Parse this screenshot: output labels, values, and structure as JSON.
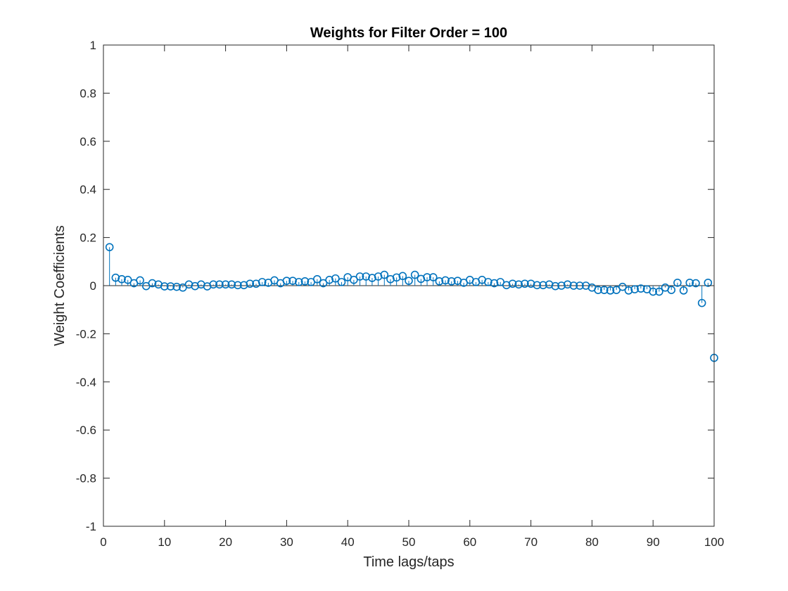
{
  "chart_data": {
    "type": "stem",
    "title": "Weights for Filter Order = 100",
    "xlabel": "Time lags/taps",
    "ylabel": "Weight Coefficients",
    "xlim": [
      0,
      100
    ],
    "ylim": [
      -1,
      1
    ],
    "xticks": [
      0,
      10,
      20,
      30,
      40,
      50,
      60,
      70,
      80,
      90,
      100
    ],
    "yticks": [
      -1,
      -0.8,
      -0.6,
      -0.4,
      -0.2,
      0,
      0.2,
      0.4,
      0.6,
      0.8,
      1
    ],
    "xtick_labels": [
      "0",
      "10",
      "20",
      "30",
      "40",
      "50",
      "60",
      "70",
      "80",
      "90",
      "100"
    ],
    "ytick_labels": [
      "-1",
      "-0.8",
      "-0.6",
      "-0.4",
      "-0.2",
      "0",
      "0.2",
      "0.4",
      "0.6",
      "0.8",
      "1"
    ],
    "grid": false,
    "box": true,
    "series_color": "#0072BD",
    "x": [
      1,
      2,
      3,
      4,
      5,
      6,
      7,
      8,
      9,
      10,
      11,
      12,
      13,
      14,
      15,
      16,
      17,
      18,
      19,
      20,
      21,
      22,
      23,
      24,
      25,
      26,
      27,
      28,
      29,
      30,
      31,
      32,
      33,
      34,
      35,
      36,
      37,
      38,
      39,
      40,
      41,
      42,
      43,
      44,
      45,
      46,
      47,
      48,
      49,
      50,
      51,
      52,
      53,
      54,
      55,
      56,
      57,
      58,
      59,
      60,
      61,
      62,
      63,
      64,
      65,
      66,
      67,
      68,
      69,
      70,
      71,
      72,
      73,
      74,
      75,
      76,
      77,
      78,
      79,
      80,
      81,
      82,
      83,
      84,
      85,
      86,
      87,
      88,
      89,
      90,
      91,
      92,
      93,
      94,
      95,
      96,
      97,
      98,
      99,
      100
    ],
    "values": [
      0.16,
      0.033,
      0.027,
      0.024,
      0.01,
      0.022,
      -0.002,
      0.01,
      0.005,
      -0.003,
      -0.003,
      -0.005,
      -0.008,
      0.005,
      -0.002,
      0.005,
      -0.003,
      0.005,
      0.005,
      0.005,
      0.005,
      0.002,
      0.002,
      0.008,
      0.008,
      0.015,
      0.012,
      0.022,
      0.01,
      0.02,
      0.02,
      0.015,
      0.018,
      0.015,
      0.027,
      0.01,
      0.024,
      0.03,
      0.015,
      0.035,
      0.024,
      0.038,
      0.038,
      0.032,
      0.038,
      0.045,
      0.027,
      0.034,
      0.04,
      0.02,
      0.045,
      0.028,
      0.035,
      0.035,
      0.018,
      0.022,
      0.018,
      0.02,
      0.012,
      0.024,
      0.015,
      0.024,
      0.015,
      0.01,
      0.015,
      0.002,
      0.008,
      0.005,
      0.008,
      0.008,
      0.002,
      0.002,
      0.005,
      -0.002,
      0.0,
      0.005,
      0.0,
      0.0,
      0.0,
      -0.008,
      -0.018,
      -0.018,
      -0.02,
      -0.018,
      -0.005,
      -0.02,
      -0.015,
      -0.012,
      -0.015,
      -0.025,
      -0.025,
      -0.008,
      -0.018,
      0.012,
      -0.02,
      0.012,
      0.01,
      -0.072,
      0.012,
      -0.3
    ]
  }
}
